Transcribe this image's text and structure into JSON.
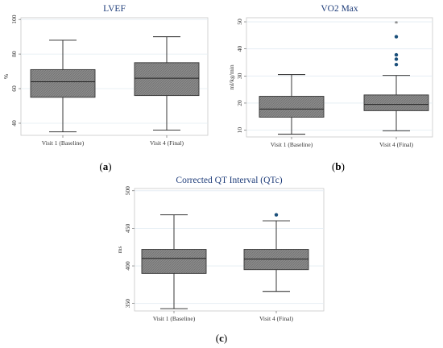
{
  "figure": {
    "panels": [
      {
        "caption_letter": "a"
      },
      {
        "caption_letter": "b"
      },
      {
        "caption_letter": "c"
      }
    ]
  },
  "chart_data": [
    {
      "type": "box",
      "title": "LVEF",
      "ylabel": "%",
      "xlabel": "",
      "categories": [
        "Visit 1 (Baseline)",
        "Visit 4 (Final)"
      ],
      "yticks": [
        40,
        60,
        80,
        100
      ],
      "ylim": [
        33,
        101
      ],
      "grid": true,
      "boxes": [
        {
          "min": 35,
          "q1": 55,
          "median": 64,
          "q3": 71,
          "max": 88,
          "outliers": []
        },
        {
          "min": 36,
          "q1": 56,
          "median": 66,
          "q3": 75,
          "max": 90,
          "outliers": []
        }
      ],
      "outlier_color": "#1a4f7a"
    },
    {
      "type": "box",
      "title": "VO2 Max",
      "ylabel": "ml/kg/min",
      "xlabel": "",
      "categories": [
        "Visit 1 (Baseline)",
        "Visit 4 (Final)"
      ],
      "yticks": [
        10,
        20,
        30,
        40,
        50
      ],
      "ylim": [
        7.5,
        51.5
      ],
      "grid": true,
      "boxes": [
        {
          "min": 8.5,
          "q1": 14.8,
          "median": 17.8,
          "q3": 22.5,
          "max": 30.5,
          "outliers": []
        },
        {
          "min": 9.8,
          "q1": 17.2,
          "median": 19.5,
          "q3": 23.0,
          "max": 30.2,
          "outliers": [
            34.2,
            36.2,
            37.8,
            44.5
          ],
          "extreme_outliers": [
            49.5
          ]
        }
      ],
      "outlier_color": "#1a4f7a"
    },
    {
      "type": "box",
      "title": "Corrected QT Interval (QTc)",
      "ylabel": "ms",
      "xlabel": "",
      "categories": [
        "Visit 1 (Baseline)",
        "Visit 4 (Final)"
      ],
      "yticks": [
        350,
        400,
        450,
        500
      ],
      "ylim": [
        340,
        503
      ],
      "grid": true,
      "boxes": [
        {
          "min": 343,
          "q1": 390,
          "median": 410,
          "q3": 422,
          "max": 468,
          "outliers": []
        },
        {
          "min": 366,
          "q1": 395,
          "median": 409,
          "q3": 422,
          "max": 460,
          "outliers": [
            468
          ]
        }
      ],
      "outlier_color": "#1a4f7a"
    }
  ]
}
